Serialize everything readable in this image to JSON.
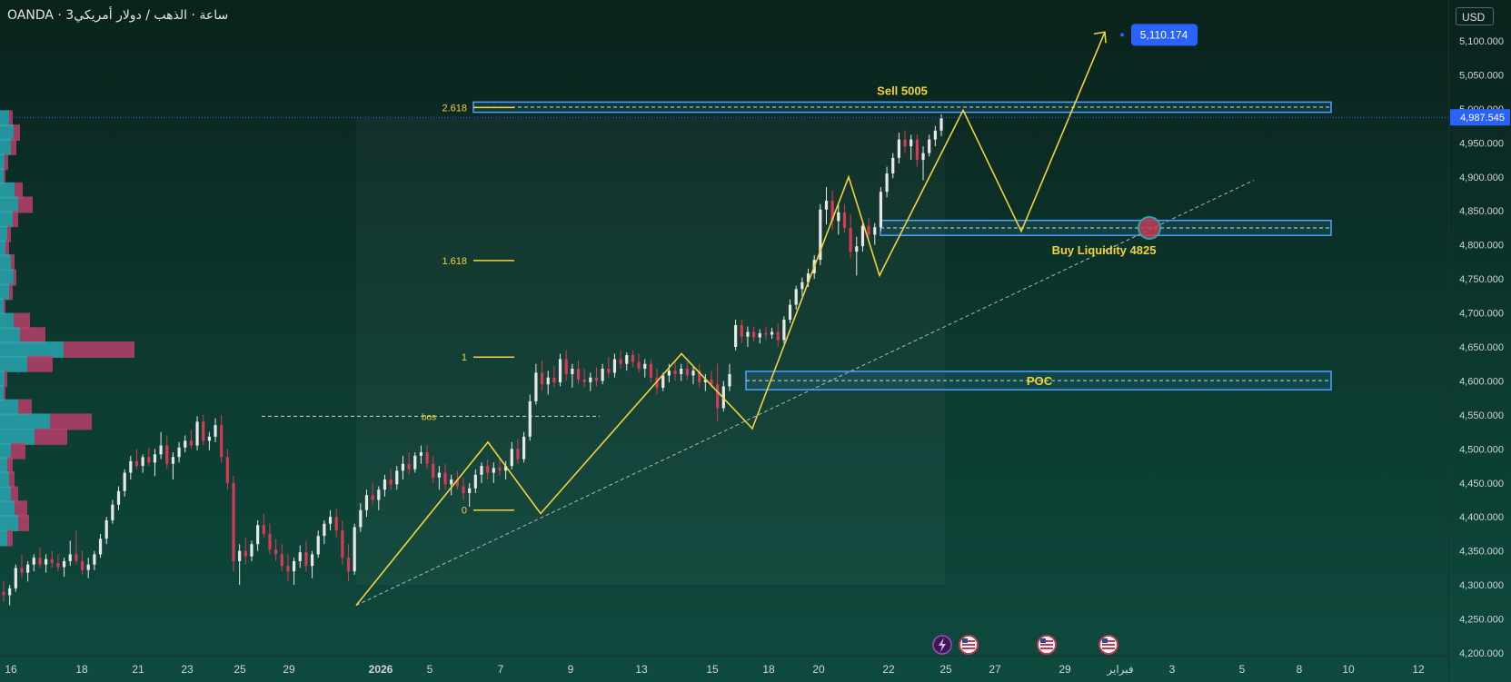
{
  "header": {
    "title": "OANDA · 3ساعة · الذهب / دولار أمريكي",
    "currency": "USD"
  },
  "chart_data": {
    "type": "candlestick",
    "title": "الذهب / دولار أمريكي",
    "source": "OANDA",
    "timeframe": "3ساعة",
    "price_axis": {
      "ylim": [
        4200,
        5130
      ],
      "ticks": [
        "5,100.000",
        "5,050.000",
        "5,000.000",
        "4,950.000",
        "4,900.000",
        "4,850.000",
        "4,800.000",
        "4,750.000",
        "4,700.000",
        "4,650.000",
        "4,600.000",
        "4,550.000",
        "4,500.000",
        "4,450.000",
        "4,400.000",
        "4,350.000",
        "4,300.000",
        "4,250.000",
        "4,200.000"
      ],
      "current_price": "4,987.545",
      "current_value": 4987.545
    },
    "time_axis": {
      "ticks": [
        "16",
        "18",
        "21",
        "23",
        "25",
        "29",
        "2026",
        "5",
        "7",
        "9",
        "13",
        "15",
        "18",
        "20",
        "22",
        "25",
        "27",
        "29",
        "فبراير",
        "3",
        "5",
        "8",
        "10",
        "12"
      ]
    },
    "target_label": "5,110.174",
    "target_value": 5110.174,
    "fib_levels": [
      {
        "label": "2.618",
        "value": 5002
      },
      {
        "label": "1.618",
        "value": 4777
      },
      {
        "label": "1",
        "value": 4635
      },
      {
        "label": "0",
        "value": 4410
      }
    ],
    "zones": [
      {
        "label": "Sell 5005",
        "top": 5010,
        "bottom": 4995
      },
      {
        "label": "Buy Liquidity 4825",
        "top": 4836,
        "bottom": 4814
      },
      {
        "label": "POC",
        "top": 4614,
        "bottom": 4587
      }
    ],
    "bos_label": "bos",
    "bos_value": 4548,
    "yellow_path": [
      {
        "x": "2026-01-01 06:00",
        "y": 4270
      },
      {
        "x": "2026-01-07 09:00",
        "y": 4510
      },
      {
        "x": "2026-01-08 15:00",
        "y": 4405
      },
      {
        "x": "2026-01-14 12:00",
        "y": 4640
      },
      {
        "x": "2026-01-17 18:00",
        "y": 4530
      },
      {
        "x": "2026-01-21 06:00",
        "y": 4900
      },
      {
        "x": "2026-01-22 18:00",
        "y": 4755
      },
      {
        "x": "2026-01-26 12:00",
        "y": 4998
      },
      {
        "x": "2026-01-28 12:00",
        "y": 4820
      },
      {
        "x": "2026-01-31 09:00",
        "y": 5113
      }
    ],
    "trendline": {
      "from": {
        "x": "2026-01-01 06:00",
        "y": 4270
      },
      "to": {
        "x": "2026-02-04 06:00",
        "y": 4895
      }
    },
    "volume_profile": [
      {
        "price": 4986,
        "up": 10,
        "down": 4
      },
      {
        "price": 4965,
        "up": 15,
        "down": 7
      },
      {
        "price": 4944,
        "up": 12,
        "down": 6
      },
      {
        "price": 4922,
        "up": 5,
        "down": 4
      },
      {
        "price": 4901,
        "up": 4,
        "down": 2
      },
      {
        "price": 4880,
        "up": 16,
        "down": 9
      },
      {
        "price": 4859,
        "up": 20,
        "down": 16
      },
      {
        "price": 4838,
        "up": 14,
        "down": 6
      },
      {
        "price": 4816,
        "up": 8,
        "down": 4
      },
      {
        "price": 4795,
        "up": 6,
        "down": 4
      },
      {
        "price": 4774,
        "up": 12,
        "down": 4
      },
      {
        "price": 4752,
        "up": 15,
        "down": 3
      },
      {
        "price": 4731,
        "up": 10,
        "down": 4
      },
      {
        "price": 4710,
        "up": 4,
        "down": 2
      },
      {
        "price": 4688,
        "up": 15,
        "down": 18
      },
      {
        "price": 4667,
        "up": 22,
        "down": 28
      },
      {
        "price": 4646,
        "up": 70,
        "down": 78
      },
      {
        "price": 4625,
        "up": 30,
        "down": 28
      },
      {
        "price": 4603,
        "up": 5,
        "down": 3
      },
      {
        "price": 4582,
        "up": 4,
        "down": 2
      },
      {
        "price": 4561,
        "up": 20,
        "down": 15
      },
      {
        "price": 4540,
        "up": 55,
        "down": 46
      },
      {
        "price": 4518,
        "up": 38,
        "down": 36
      },
      {
        "price": 4497,
        "up": 12,
        "down": 16
      },
      {
        "price": 4476,
        "up": 8,
        "down": 6
      },
      {
        "price": 4455,
        "up": 10,
        "down": 6
      },
      {
        "price": 4433,
        "up": 12,
        "down": 8
      },
      {
        "price": 4412,
        "up": 16,
        "down": 14
      },
      {
        "price": 4391,
        "up": 20,
        "down": 12
      },
      {
        "price": 4369,
        "up": 8,
        "down": 6
      }
    ],
    "candles": [
      {
        "o": 4290,
        "h": 4305,
        "l": 4275,
        "c": 4285
      },
      {
        "o": 4285,
        "h": 4300,
        "l": 4270,
        "c": 4295
      },
      {
        "o": 4295,
        "h": 4330,
        "l": 4290,
        "c": 4325
      },
      {
        "o": 4325,
        "h": 4345,
        "l": 4310,
        "c": 4318
      },
      {
        "o": 4318,
        "h": 4335,
        "l": 4305,
        "c": 4330
      },
      {
        "o": 4330,
        "h": 4345,
        "l": 4320,
        "c": 4340
      },
      {
        "o": 4340,
        "h": 4355,
        "l": 4325,
        "c": 4330
      },
      {
        "o": 4330,
        "h": 4345,
        "l": 4318,
        "c": 4338
      },
      {
        "o": 4338,
        "h": 4350,
        "l": 4325,
        "c": 4332
      },
      {
        "o": 4332,
        "h": 4345,
        "l": 4320,
        "c": 4326
      },
      {
        "o": 4326,
        "h": 4340,
        "l": 4312,
        "c": 4335
      },
      {
        "o": 4335,
        "h": 4365,
        "l": 4328,
        "c": 4345
      },
      {
        "o": 4345,
        "h": 4380,
        "l": 4330,
        "c": 4335
      },
      {
        "o": 4335,
        "h": 4350,
        "l": 4315,
        "c": 4322
      },
      {
        "o": 4322,
        "h": 4340,
        "l": 4310,
        "c": 4330
      },
      {
        "o": 4330,
        "h": 4350,
        "l": 4322,
        "c": 4345
      },
      {
        "o": 4345,
        "h": 4375,
        "l": 4340,
        "c": 4368
      },
      {
        "o": 4368,
        "h": 4400,
        "l": 4360,
        "c": 4395
      },
      {
        "o": 4395,
        "h": 4425,
        "l": 4390,
        "c": 4418
      },
      {
        "o": 4418,
        "h": 4445,
        "l": 4410,
        "c": 4438
      },
      {
        "o": 4438,
        "h": 4470,
        "l": 4430,
        "c": 4465
      },
      {
        "o": 4465,
        "h": 4490,
        "l": 4455,
        "c": 4482
      },
      {
        "o": 4482,
        "h": 4500,
        "l": 4470,
        "c": 4475
      },
      {
        "o": 4475,
        "h": 4492,
        "l": 4465,
        "c": 4488
      },
      {
        "o": 4488,
        "h": 4502,
        "l": 4475,
        "c": 4480
      },
      {
        "o": 4480,
        "h": 4500,
        "l": 4460,
        "c": 4492
      },
      {
        "o": 4492,
        "h": 4525,
        "l": 4485,
        "c": 4505
      },
      {
        "o": 4505,
        "h": 4520,
        "l": 4470,
        "c": 4478
      },
      {
        "o": 4478,
        "h": 4495,
        "l": 4455,
        "c": 4488
      },
      {
        "o": 4488,
        "h": 4510,
        "l": 4480,
        "c": 4502
      },
      {
        "o": 4502,
        "h": 4520,
        "l": 4495,
        "c": 4512
      },
      {
        "o": 4512,
        "h": 4528,
        "l": 4500,
        "c": 4505
      },
      {
        "o": 4505,
        "h": 4548,
        "l": 4498,
        "c": 4540
      },
      {
        "o": 4540,
        "h": 4550,
        "l": 4505,
        "c": 4512
      },
      {
        "o": 4512,
        "h": 4525,
        "l": 4498,
        "c": 4518
      },
      {
        "o": 4518,
        "h": 4545,
        "l": 4510,
        "c": 4535
      },
      {
        "o": 4535,
        "h": 4550,
        "l": 4480,
        "c": 4488
      },
      {
        "o": 4488,
        "h": 4500,
        "l": 4440,
        "c": 4450
      },
      {
        "o": 4450,
        "h": 4460,
        "l": 4320,
        "c": 4335
      },
      {
        "o": 4335,
        "h": 4360,
        "l": 4300,
        "c": 4350
      },
      {
        "o": 4350,
        "h": 4370,
        "l": 4330,
        "c": 4342
      },
      {
        "o": 4342,
        "h": 4365,
        "l": 4335,
        "c": 4360
      },
      {
        "o": 4360,
        "h": 4395,
        "l": 4350,
        "c": 4388
      },
      {
        "o": 4388,
        "h": 4405,
        "l": 4370,
        "c": 4375
      },
      {
        "o": 4375,
        "h": 4390,
        "l": 4345,
        "c": 4352
      },
      {
        "o": 4352,
        "h": 4368,
        "l": 4335,
        "c": 4345
      },
      {
        "o": 4345,
        "h": 4360,
        "l": 4320,
        "c": 4328
      },
      {
        "o": 4328,
        "h": 4345,
        "l": 4305,
        "c": 4320
      },
      {
        "o": 4320,
        "h": 4340,
        "l": 4300,
        "c": 4335
      },
      {
        "o": 4335,
        "h": 4358,
        "l": 4325,
        "c": 4348
      },
      {
        "o": 4348,
        "h": 4365,
        "l": 4320,
        "c": 4328
      },
      {
        "o": 4328,
        "h": 4350,
        "l": 4310,
        "c": 4345
      },
      {
        "o": 4345,
        "h": 4380,
        "l": 4340,
        "c": 4372
      },
      {
        "o": 4372,
        "h": 4395,
        "l": 4360,
        "c": 4390
      },
      {
        "o": 4390,
        "h": 4410,
        "l": 4380,
        "c": 4400
      },
      {
        "o": 4400,
        "h": 4412,
        "l": 4370,
        "c": 4380
      },
      {
        "o": 4380,
        "h": 4395,
        "l": 4330,
        "c": 4340
      },
      {
        "o": 4340,
        "h": 4360,
        "l": 4305,
        "c": 4320
      },
      {
        "o": 4320,
        "h": 4390,
        "l": 4315,
        "c": 4385
      },
      {
        "o": 4385,
        "h": 4420,
        "l": 4378,
        "c": 4410
      },
      {
        "o": 4410,
        "h": 4440,
        "l": 4400,
        "c": 4432
      },
      {
        "o": 4432,
        "h": 4450,
        "l": 4418,
        "c": 4425
      },
      {
        "o": 4425,
        "h": 4445,
        "l": 4410,
        "c": 4440
      },
      {
        "o": 4440,
        "h": 4462,
        "l": 4430,
        "c": 4455
      },
      {
        "o": 4455,
        "h": 4470,
        "l": 4440,
        "c": 4448
      },
      {
        "o": 4448,
        "h": 4475,
        "l": 4440,
        "c": 4468
      },
      {
        "o": 4468,
        "h": 4490,
        "l": 4455,
        "c": 4478
      },
      {
        "o": 4478,
        "h": 4495,
        "l": 4462,
        "c": 4470
      },
      {
        "o": 4470,
        "h": 4495,
        "l": 4465,
        "c": 4490
      },
      {
        "o": 4490,
        "h": 4505,
        "l": 4478,
        "c": 4495
      },
      {
        "o": 4495,
        "h": 4505,
        "l": 4470,
        "c": 4478
      },
      {
        "o": 4478,
        "h": 4490,
        "l": 4450,
        "c": 4458
      },
      {
        "o": 4458,
        "h": 4475,
        "l": 4440,
        "c": 4465
      },
      {
        "o": 4465,
        "h": 4478,
        "l": 4440,
        "c": 4448
      },
      {
        "o": 4448,
        "h": 4462,
        "l": 4432,
        "c": 4455
      },
      {
        "o": 4455,
        "h": 4468,
        "l": 4440,
        "c": 4445
      },
      {
        "o": 4445,
        "h": 4458,
        "l": 4425,
        "c": 4435
      },
      {
        "o": 4435,
        "h": 4450,
        "l": 4415,
        "c": 4442
      },
      {
        "o": 4442,
        "h": 4470,
        "l": 4435,
        "c": 4462
      },
      {
        "o": 4462,
        "h": 4480,
        "l": 4450,
        "c": 4475
      },
      {
        "o": 4475,
        "h": 4485,
        "l": 4455,
        "c": 4465
      },
      {
        "o": 4465,
        "h": 4480,
        "l": 4450,
        "c": 4472
      },
      {
        "o": 4472,
        "h": 4485,
        "l": 4460,
        "c": 4468
      },
      {
        "o": 4468,
        "h": 4482,
        "l": 4455,
        "c": 4475
      },
      {
        "o": 4475,
        "h": 4510,
        "l": 4470,
        "c": 4500
      },
      {
        "o": 4500,
        "h": 4515,
        "l": 4478,
        "c": 4485
      },
      {
        "o": 4485,
        "h": 4525,
        "l": 4480,
        "c": 4518
      },
      {
        "o": 4518,
        "h": 4580,
        "l": 4512,
        "c": 4570
      },
      {
        "o": 4570,
        "h": 4625,
        "l": 4565,
        "c": 4612
      },
      {
        "o": 4612,
        "h": 4630,
        "l": 4585,
        "c": 4595
      },
      {
        "o": 4595,
        "h": 4615,
        "l": 4580,
        "c": 4605
      },
      {
        "o": 4605,
        "h": 4622,
        "l": 4590,
        "c": 4598
      },
      {
        "o": 4598,
        "h": 4640,
        "l": 4592,
        "c": 4632
      },
      {
        "o": 4632,
        "h": 4645,
        "l": 4600,
        "c": 4610
      },
      {
        "o": 4610,
        "h": 4625,
        "l": 4590,
        "c": 4618
      },
      {
        "o": 4618,
        "h": 4630,
        "l": 4595,
        "c": 4602
      },
      {
        "o": 4602,
        "h": 4618,
        "l": 4590,
        "c": 4598
      },
      {
        "o": 4598,
        "h": 4612,
        "l": 4585,
        "c": 4605
      },
      {
        "o": 4605,
        "h": 4620,
        "l": 4592,
        "c": 4600
      },
      {
        "o": 4600,
        "h": 4625,
        "l": 4595,
        "c": 4618
      },
      {
        "o": 4618,
        "h": 4635,
        "l": 4605,
        "c": 4612
      },
      {
        "o": 4612,
        "h": 4640,
        "l": 4605,
        "c": 4632
      },
      {
        "o": 4632,
        "h": 4645,
        "l": 4618,
        "c": 4625
      },
      {
        "o": 4625,
        "h": 4642,
        "l": 4615,
        "c": 4638
      },
      {
        "o": 4638,
        "h": 4645,
        "l": 4620,
        "c": 4628
      },
      {
        "o": 4628,
        "h": 4640,
        "l": 4612,
        "c": 4618
      },
      {
        "o": 4618,
        "h": 4632,
        "l": 4605,
        "c": 4625
      },
      {
        "o": 4625,
        "h": 4632,
        "l": 4598,
        "c": 4605
      },
      {
        "o": 4605,
        "h": 4618,
        "l": 4580,
        "c": 4590
      },
      {
        "o": 4590,
        "h": 4612,
        "l": 4585,
        "c": 4608
      },
      {
        "o": 4608,
        "h": 4625,
        "l": 4598,
        "c": 4615
      },
      {
        "o": 4615,
        "h": 4628,
        "l": 4600,
        "c": 4610
      },
      {
        "o": 4610,
        "h": 4625,
        "l": 4600,
        "c": 4618
      },
      {
        "o": 4618,
        "h": 4628,
        "l": 4602,
        "c": 4608
      },
      {
        "o": 4608,
        "h": 4622,
        "l": 4595,
        "c": 4615
      },
      {
        "o": 4615,
        "h": 4625,
        "l": 4590,
        "c": 4598
      },
      {
        "o": 4598,
        "h": 4610,
        "l": 4585,
        "c": 4602
      },
      {
        "o": 4602,
        "h": 4615,
        "l": 4590,
        "c": 4595
      },
      {
        "o": 4595,
        "h": 4625,
        "l": 4540,
        "c": 4560
      },
      {
        "o": 4560,
        "h": 4600,
        "l": 4555,
        "c": 4592
      },
      {
        "o": 4592,
        "h": 4625,
        "l": 4585,
        "c": 4610
      },
      {
        "o": 4650,
        "h": 4690,
        "l": 4645,
        "c": 4682
      },
      {
        "o": 4682,
        "h": 4690,
        "l": 4655,
        "c": 4665
      },
      {
        "o": 4665,
        "h": 4680,
        "l": 4650,
        "c": 4672
      },
      {
        "o": 4672,
        "h": 4680,
        "l": 4658,
        "c": 4664
      },
      {
        "o": 4664,
        "h": 4676,
        "l": 4655,
        "c": 4670
      },
      {
        "o": 4670,
        "h": 4680,
        "l": 4660,
        "c": 4668
      },
      {
        "o": 4668,
        "h": 4678,
        "l": 4662,
        "c": 4672
      },
      {
        "o": 4672,
        "h": 4685,
        "l": 4650,
        "c": 4660
      },
      {
        "o": 4660,
        "h": 4695,
        "l": 4655,
        "c": 4690
      },
      {
        "o": 4690,
        "h": 4720,
        "l": 4685,
        "c": 4712
      },
      {
        "o": 4712,
        "h": 4740,
        "l": 4705,
        "c": 4735
      },
      {
        "o": 4735,
        "h": 4752,
        "l": 4725,
        "c": 4745
      },
      {
        "o": 4745,
        "h": 4765,
        "l": 4738,
        "c": 4758
      },
      {
        "o": 4758,
        "h": 4785,
        "l": 4750,
        "c": 4778
      },
      {
        "o": 4778,
        "h": 4860,
        "l": 4770,
        "c": 4852
      },
      {
        "o": 4852,
        "h": 4885,
        "l": 4830,
        "c": 4865
      },
      {
        "o": 4865,
        "h": 4880,
        "l": 4822,
        "c": 4835
      },
      {
        "o": 4835,
        "h": 4858,
        "l": 4815,
        "c": 4848
      },
      {
        "o": 4848,
        "h": 4860,
        "l": 4818,
        "c": 4825
      },
      {
        "o": 4825,
        "h": 4845,
        "l": 4780,
        "c": 4790
      },
      {
        "o": 4790,
        "h": 4812,
        "l": 4755,
        "c": 4798
      },
      {
        "o": 4798,
        "h": 4835,
        "l": 4790,
        "c": 4828
      },
      {
        "o": 4828,
        "h": 4840,
        "l": 4805,
        "c": 4815
      },
      {
        "o": 4815,
        "h": 4832,
        "l": 4800,
        "c": 4826
      },
      {
        "o": 4826,
        "h": 4885,
        "l": 4820,
        "c": 4878
      },
      {
        "o": 4878,
        "h": 4915,
        "l": 4870,
        "c": 4905
      },
      {
        "o": 4905,
        "h": 4935,
        "l": 4898,
        "c": 4928
      },
      {
        "o": 4928,
        "h": 4965,
        "l": 4920,
        "c": 4955
      },
      {
        "o": 4955,
        "h": 4968,
        "l": 4935,
        "c": 4945
      },
      {
        "o": 4945,
        "h": 4962,
        "l": 4925,
        "c": 4955
      },
      {
        "o": 4955,
        "h": 4962,
        "l": 4915,
        "c": 4925
      },
      {
        "o": 4925,
        "h": 4945,
        "l": 4895,
        "c": 4935
      },
      {
        "o": 4935,
        "h": 4962,
        "l": 4930,
        "c": 4955
      },
      {
        "o": 4955,
        "h": 4975,
        "l": 4945,
        "c": 4968
      },
      {
        "o": 4968,
        "h": 4992,
        "l": 4960,
        "c": 4986
      }
    ],
    "event_icons": [
      "flash-icon",
      "us-flag-icon",
      "us-flag-icon",
      "us-flag-icon"
    ]
  },
  "colors": {
    "up": "#e8e8e8",
    "down": "#d63b54",
    "fib": "#f2d33a",
    "zone_border": "#4aa3ff",
    "badge": "#2962ff",
    "profile_up": "#2aa6b0",
    "profile_down": "#b8406a",
    "trendline": "#cfd8dc"
  }
}
